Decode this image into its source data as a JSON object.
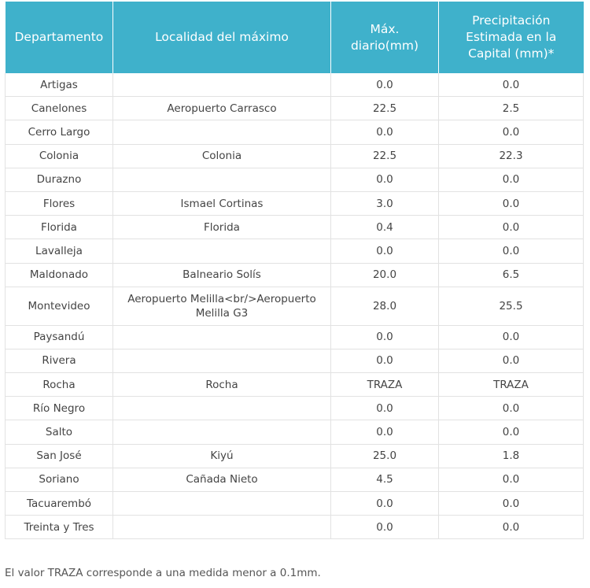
{
  "header": {
    "departamento": "Departamento",
    "localidad": "Localidad del máximo",
    "max_diario": "Máx. diario(mm)",
    "precipitacion": "Precipitación Estimada en la Capital (mm)*"
  },
  "rows": [
    {
      "dep": "Artigas",
      "loc": "",
      "max": "0.0",
      "cap": "0.0"
    },
    {
      "dep": "Canelones",
      "loc": "Aeropuerto Carrasco",
      "max": "22.5",
      "cap": "2.5"
    },
    {
      "dep": "Cerro Largo",
      "loc": "",
      "max": "0.0",
      "cap": "0.0"
    },
    {
      "dep": "Colonia",
      "loc": "Colonia",
      "max": "22.5",
      "cap": "22.3"
    },
    {
      "dep": "Durazno",
      "loc": "",
      "max": "0.0",
      "cap": "0.0"
    },
    {
      "dep": "Flores",
      "loc": "Ismael Cortinas",
      "max": "3.0",
      "cap": "0.0"
    },
    {
      "dep": "Florida",
      "loc": "Florida",
      "max": "0.4",
      "cap": "0.0"
    },
    {
      "dep": "Lavalleja",
      "loc": "",
      "max": "0.0",
      "cap": "0.0"
    },
    {
      "dep": "Maldonado",
      "loc": "Balneario Solís",
      "max": "20.0",
      "cap": "6.5"
    },
    {
      "dep": "Montevideo",
      "loc": "Aeropuerto Melilla<br/>Aeropuerto Melilla G3",
      "max": "28.0",
      "cap": "25.5"
    },
    {
      "dep": "Paysandú",
      "loc": "",
      "max": "0.0",
      "cap": "0.0"
    },
    {
      "dep": "Rivera",
      "loc": "",
      "max": "0.0",
      "cap": "0.0"
    },
    {
      "dep": "Rocha",
      "loc": "Rocha",
      "max": "TRAZA",
      "cap": "TRAZA"
    },
    {
      "dep": "Río Negro",
      "loc": "",
      "max": "0.0",
      "cap": "0.0"
    },
    {
      "dep": "Salto",
      "loc": "",
      "max": "0.0",
      "cap": "0.0"
    },
    {
      "dep": "San José",
      "loc": "Kiyú",
      "max": "25.0",
      "cap": "1.8"
    },
    {
      "dep": "Soriano",
      "loc": "Cañada Nieto",
      "max": "4.5",
      "cap": "0.0"
    },
    {
      "dep": "Tacuarembó",
      "loc": "",
      "max": "0.0",
      "cap": "0.0"
    },
    {
      "dep": "Treinta y Tres",
      "loc": "",
      "max": "0.0",
      "cap": "0.0"
    }
  ],
  "note": "El valor TRAZA corresponde a una medida menor a 0.1mm."
}
